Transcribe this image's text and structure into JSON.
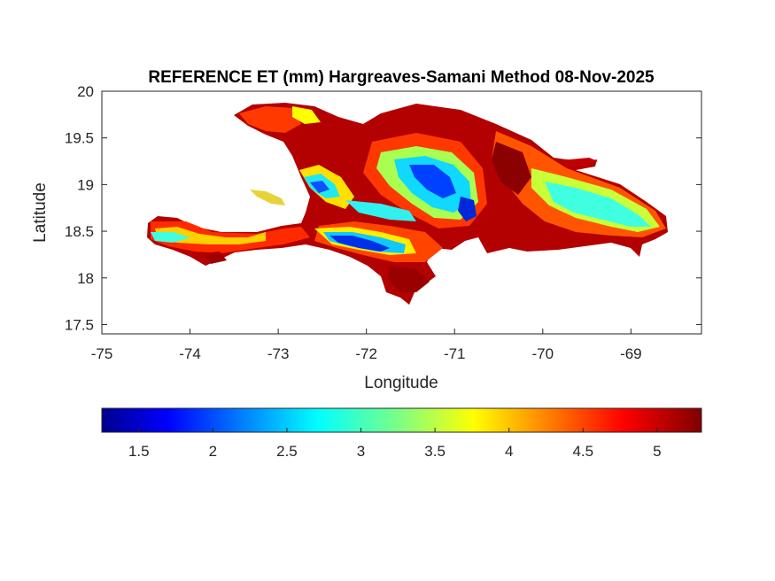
{
  "title": "REFERENCE ET (mm) Hargreaves-Samani Method  08-Nov-2025",
  "xlabel": "Longitude",
  "ylabel": "Latitude",
  "x_ticks": [
    "-75",
    "-74",
    "-73",
    "-72",
    "-71",
    "-70",
    "-69"
  ],
  "y_ticks": [
    "20",
    "19.5",
    "19",
    "18.5",
    "18",
    "17.5"
  ],
  "colorbar_ticks": [
    "1.5",
    "2",
    "2.5",
    "3",
    "3.5",
    "4",
    "4.5",
    "5"
  ],
  "colormap": "jet",
  "map": {
    "type": "raster map",
    "region": "Hispaniola",
    "xlim": [
      -75,
      -68.2
    ],
    "ylim": [
      17.4,
      20
    ],
    "clim": [
      1.25,
      5.3
    ],
    "colors": {
      "dark_red": "#8b0000",
      "red": "#e31a1c",
      "yellow": "#ffff00",
      "cyan": "#00ffff",
      "blue": "#0000ff"
    }
  }
}
